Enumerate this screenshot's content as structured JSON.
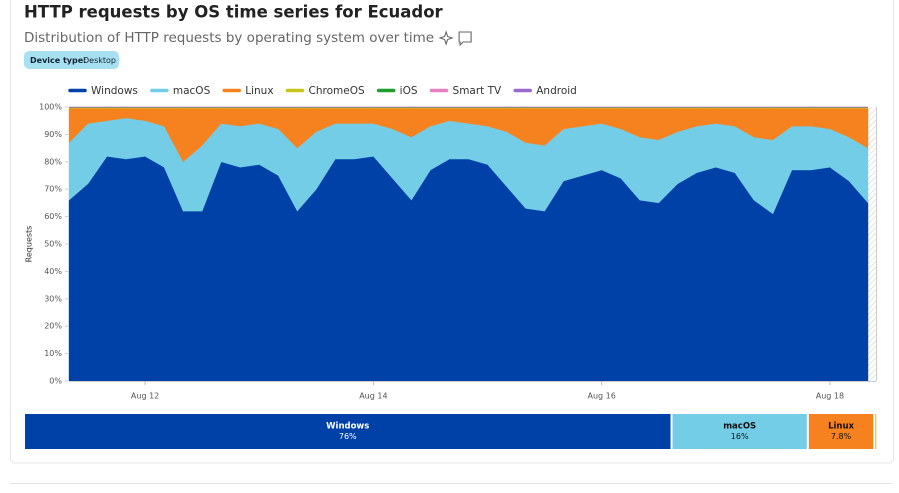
{
  "header": {
    "title": "HTTP requests by OS time series for Ecuador",
    "subtitle": "Distribution of HTTP requests by operating system over time",
    "filter_label": "Device type:",
    "filter_value": "Desktop"
  },
  "chart_data": {
    "type": "stacked_area",
    "ylabel": "Requests",
    "categories": [
      null,
      null,
      null,
      null,
      "Aug 12",
      null,
      null,
      null,
      null,
      null,
      null,
      null,
      null,
      null,
      null,
      null,
      "Aug 14",
      null,
      null,
      null,
      null,
      null,
      null,
      null,
      null,
      null,
      null,
      null,
      "Aug 16",
      null,
      null,
      null,
      null,
      null,
      null,
      null,
      null,
      null,
      null,
      null,
      "Aug 18",
      null,
      null
    ],
    "ylim": [
      0,
      100
    ],
    "yticks": [
      {
        "value": 0,
        "label": "0%"
      },
      {
        "value": 10,
        "label": "10%"
      },
      {
        "value": 20,
        "label": "20%"
      },
      {
        "value": 30,
        "label": "30%"
      },
      {
        "value": 40,
        "label": "40%"
      },
      {
        "value": 50,
        "label": "50%"
      },
      {
        "value": 60,
        "label": "60%"
      },
      {
        "value": 70,
        "label": "70%"
      },
      {
        "value": 80,
        "label": "80%"
      },
      {
        "value": 90,
        "label": "90%"
      },
      {
        "value": 100,
        "label": "100%"
      }
    ],
    "grid": false,
    "series": [
      {
        "name": "Windows",
        "color": "#0041a8",
        "values": [
          66,
          72,
          82,
          81,
          82,
          78,
          62,
          62,
          80,
          78,
          79,
          75,
          62,
          70,
          81,
          81,
          82,
          74,
          66,
          77,
          81,
          81,
          79,
          71,
          63,
          62,
          73,
          75,
          77,
          74,
          66,
          65,
          72,
          76,
          78,
          76,
          66,
          61,
          77,
          77,
          78,
          73,
          65
        ]
      },
      {
        "name": "macOS",
        "color": "#74cde6",
        "values": [
          21,
          22,
          13,
          15,
          13,
          15,
          18,
          24,
          14,
          15,
          15,
          17,
          23,
          21,
          13,
          13,
          12,
          18,
          23,
          16,
          14,
          13,
          14,
          20,
          24,
          24,
          19,
          18,
          17,
          18,
          23,
          23,
          19,
          17,
          16,
          17,
          23,
          27,
          16,
          16,
          14,
          16,
          20
        ]
      },
      {
        "name": "Linux",
        "color": "#f6821f",
        "values": [
          12.5,
          5.5,
          4.5,
          3.5,
          4.5,
          6.5,
          19.5,
          13.5,
          5.5,
          6.5,
          5.5,
          7.5,
          14.5,
          8.5,
          5.5,
          5.5,
          5.5,
          7.5,
          10.5,
          6.5,
          4.5,
          5.5,
          6.5,
          8.5,
          12.5,
          13.5,
          7.5,
          6.5,
          5.5,
          7.5,
          10.5,
          11.5,
          8.5,
          6.5,
          5.5,
          6.5,
          10.5,
          11.5,
          6.5,
          6.5,
          7.5,
          10.5,
          14.5
        ]
      },
      {
        "name": "ChromeOS",
        "color": "#c8c41b",
        "values": [
          0.3,
          0.3,
          0.3,
          0.3,
          0.3,
          0.3,
          0.3,
          0.3,
          0.3,
          0.3,
          0.3,
          0.3,
          0.3,
          0.3,
          0.3,
          0.3,
          0.3,
          0.3,
          0.3,
          0.3,
          0.3,
          0.3,
          0.3,
          0.3,
          0.3,
          0.3,
          0.3,
          0.3,
          0.3,
          0.3,
          0.3,
          0.3,
          0.3,
          0.3,
          0.3,
          0.3,
          0.3,
          0.3,
          0.3,
          0.3,
          0.3,
          0.3,
          0.3
        ]
      },
      {
        "name": "iOS",
        "color": "#1f9e2f",
        "values": [
          0.1,
          0.1,
          0.1,
          0.1,
          0.1,
          0.1,
          0.1,
          0.1,
          0.1,
          0.1,
          0.1,
          0.1,
          0.1,
          0.1,
          0.1,
          0.1,
          0.1,
          0.1,
          0.1,
          0.1,
          0.1,
          0.1,
          0.1,
          0.1,
          0.1,
          0.1,
          0.1,
          0.1,
          0.1,
          0.1,
          0.1,
          0.1,
          0.1,
          0.1,
          0.1,
          0.1,
          0.1,
          0.1,
          0.1,
          0.1,
          0.1,
          0.1,
          0.1
        ]
      },
      {
        "name": "Smart TV",
        "color": "#e67ec3",
        "values": [
          0.05,
          0.05,
          0.05,
          0.05,
          0.05,
          0.05,
          0.05,
          0.05,
          0.05,
          0.05,
          0.05,
          0.05,
          0.05,
          0.05,
          0.05,
          0.05,
          0.05,
          0.05,
          0.05,
          0.05,
          0.05,
          0.05,
          0.05,
          0.05,
          0.05,
          0.05,
          0.05,
          0.05,
          0.05,
          0.05,
          0.05,
          0.05,
          0.05,
          0.05,
          0.05,
          0.05,
          0.05,
          0.05,
          0.05,
          0.05,
          0.05,
          0.05,
          0.05
        ]
      },
      {
        "name": "Android",
        "color": "#9a6bd0",
        "values": [
          0.05,
          0.05,
          0.05,
          0.05,
          0.05,
          0.05,
          0.05,
          0.05,
          0.05,
          0.05,
          0.05,
          0.05,
          0.05,
          0.05,
          0.05,
          0.05,
          0.05,
          0.05,
          0.05,
          0.05,
          0.05,
          0.05,
          0.05,
          0.05,
          0.05,
          0.05,
          0.05,
          0.05,
          0.05,
          0.05,
          0.05,
          0.05,
          0.05,
          0.05,
          0.05,
          0.05,
          0.05,
          0.05,
          0.05,
          0.05,
          0.05,
          0.05,
          0.05
        ]
      }
    ],
    "summary": {
      "values": [
        76,
        16,
        7.8,
        0.2
      ],
      "value_labels": [
        "76%",
        "16%",
        "7.8%",
        null
      ]
    }
  }
}
